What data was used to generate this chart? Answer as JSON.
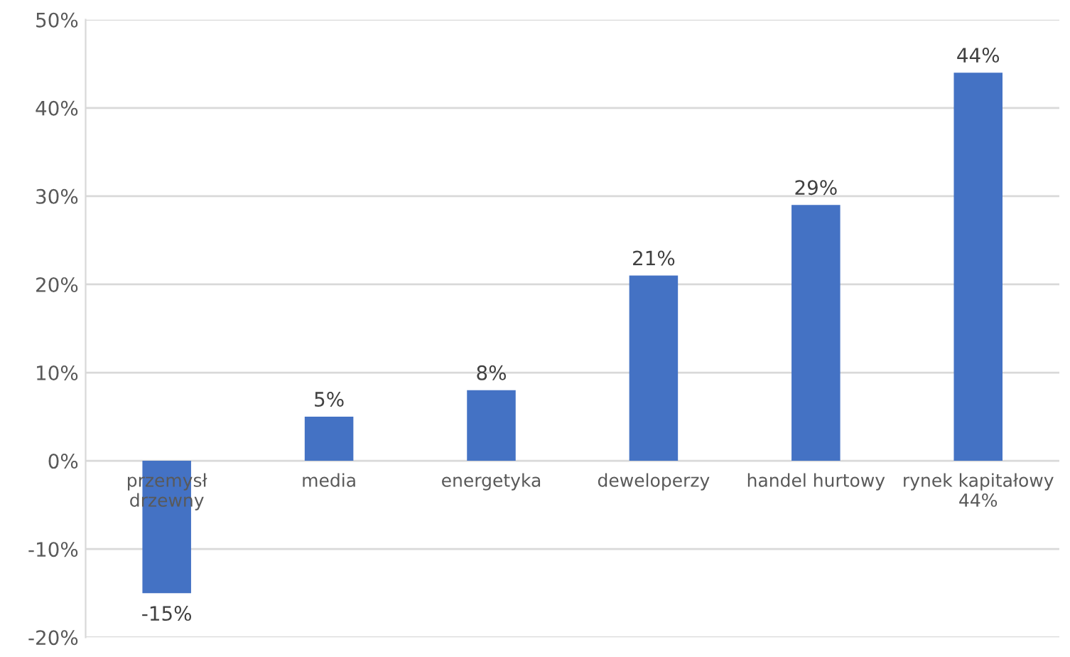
{
  "chart_data": {
    "type": "bar",
    "categories": [
      "przemysł\ndrzewny",
      "media",
      "energetyka",
      "deweloperzy",
      "handel hurtowy",
      "rynek kapitałowy\n44%"
    ],
    "values": [
      -15,
      5,
      8,
      21,
      29,
      44
    ],
    "value_labels": [
      "-15%",
      "5%",
      "8%",
      "21%",
      "29%",
      "44%"
    ],
    "color": "#4472c4",
    "ylim": [
      -20,
      50
    ],
    "yticks": [
      {
        "value": -20,
        "label": "-20%"
      },
      {
        "value": -10,
        "label": "-10%"
      },
      {
        "value": 0,
        "label": "0%"
      },
      {
        "value": 10,
        "label": "10%"
      },
      {
        "value": 20,
        "label": "20%"
      },
      {
        "value": 30,
        "label": "30%"
      },
      {
        "value": 40,
        "label": "40%"
      },
      {
        "value": 50,
        "label": "50%"
      }
    ],
    "grid": "y",
    "legend": false
  }
}
